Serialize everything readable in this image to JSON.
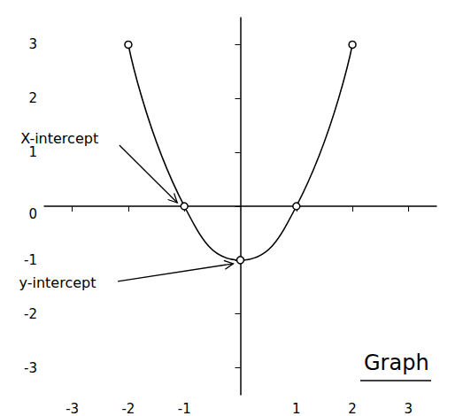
{
  "chart_data": {
    "type": "line",
    "title": "Graph",
    "x": [
      -2,
      -1,
      0,
      1,
      2
    ],
    "values": [
      3,
      0,
      -1,
      0,
      3
    ],
    "color": "#000000",
    "marker": "circle",
    "line_style": "solid",
    "xlim": [
      -3.5,
      3.5
    ],
    "ylim": [
      -3.5,
      3.5
    ],
    "xticks": [
      -3,
      -2,
      -1,
      1,
      2,
      3
    ],
    "yticks": [
      -3,
      -2,
      -1,
      0,
      1,
      2,
      3
    ],
    "grid": false,
    "annotations": [
      {
        "text": "X-intercept",
        "x": -1,
        "y": 0
      },
      {
        "text": "y-intercept",
        "x": 0,
        "y": -1
      }
    ]
  }
}
